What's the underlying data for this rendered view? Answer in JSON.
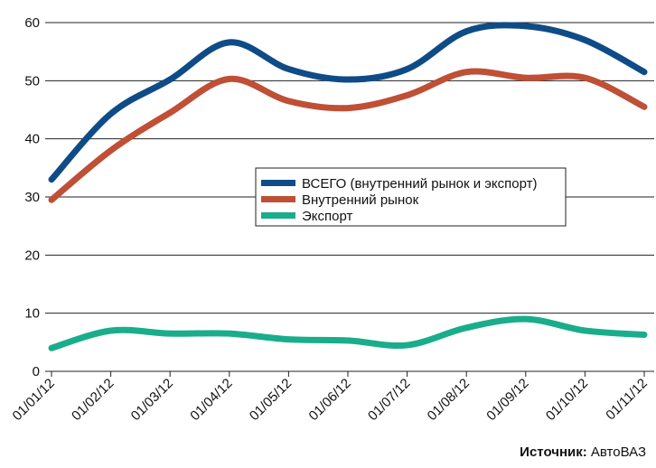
{
  "chart_data": {
    "type": "line",
    "categories": [
      "01/01/12",
      "01/02/12",
      "01/03/12",
      "01/04/12",
      "01/05/12",
      "01/06/12",
      "01/07/12",
      "01/08/12",
      "01/09/12",
      "01/10/12",
      "01/11/12"
    ],
    "series": [
      {
        "name": "ВСЕГО (внутренний рынок и экспорт)",
        "color": "#0f4c87",
        "values": [
          33,
          44.3,
          50.2,
          56.6,
          52,
          50.2,
          52,
          58.5,
          59.4,
          57,
          51.5
        ]
      },
      {
        "name": "Внутренний рынок",
        "color": "#bf4f35",
        "values": [
          29.5,
          38,
          44.5,
          50.3,
          46.5,
          45.3,
          47.5,
          51.5,
          50.5,
          50.5,
          45.5
        ]
      },
      {
        "name": "Экспорт",
        "color": "#19ad8b",
        "values": [
          4,
          7,
          6.5,
          6.5,
          5.5,
          5.3,
          4.5,
          7.5,
          9,
          7,
          6.3
        ]
      }
    ],
    "ylim": [
      0,
      60
    ],
    "yticks": [
      0,
      10,
      20,
      30,
      40,
      50,
      60
    ],
    "grid": true,
    "source_label": "Источник:",
    "source_value": "АвтоВАЗ"
  }
}
